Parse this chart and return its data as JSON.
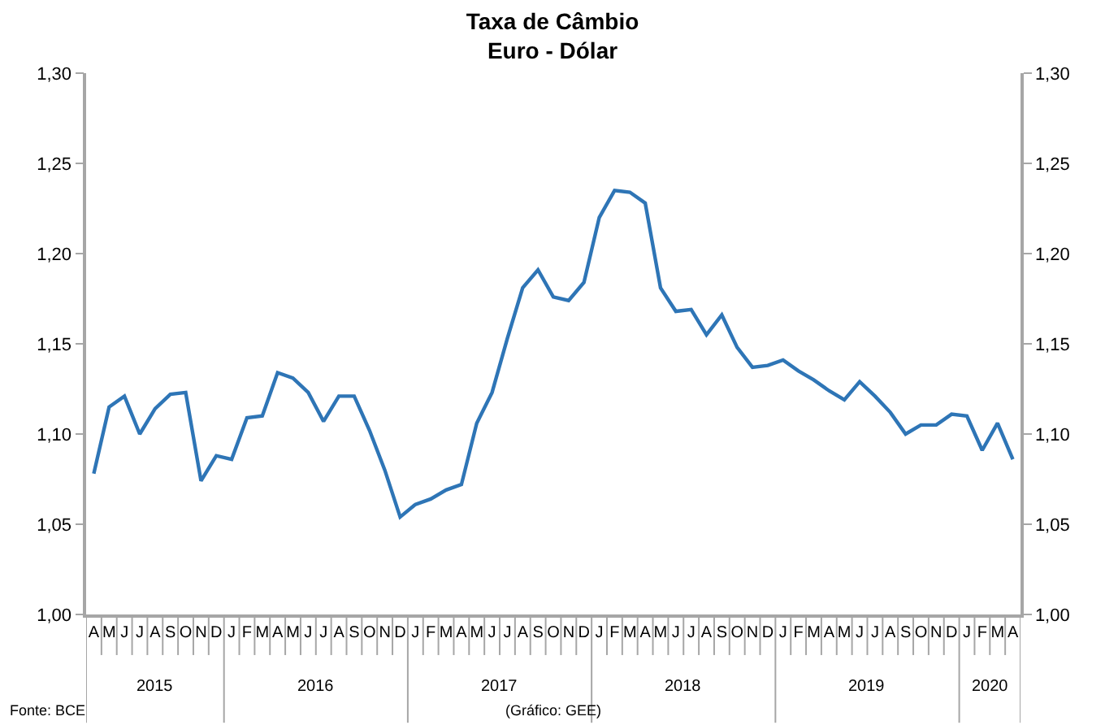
{
  "chart_data": {
    "type": "line",
    "title": "Taxa de Câmbio",
    "subtitle": "Euro - Dólar",
    "categories": [
      "A",
      "M",
      "J",
      "J",
      "A",
      "S",
      "O",
      "N",
      "D",
      "J",
      "F",
      "M",
      "A",
      "M",
      "J",
      "J",
      "A",
      "S",
      "O",
      "N",
      "D",
      "J",
      "F",
      "M",
      "A",
      "M",
      "J",
      "J",
      "A",
      "S",
      "O",
      "N",
      "D",
      "J",
      "F",
      "M",
      "A",
      "M",
      "J",
      "J",
      "A",
      "S",
      "O",
      "N",
      "D",
      "J",
      "F",
      "M",
      "A",
      "M",
      "J",
      "J",
      "A",
      "S",
      "O",
      "N",
      "D",
      "J",
      "F",
      "M",
      "A"
    ],
    "series": [
      {
        "color": "#2e75b6",
        "values": [
          1.078,
          1.115,
          1.121,
          1.1,
          1.114,
          1.122,
          1.123,
          1.074,
          1.088,
          1.086,
          1.109,
          1.11,
          1.134,
          1.131,
          1.123,
          1.107,
          1.121,
          1.121,
          1.102,
          1.08,
          1.054,
          1.061,
          1.064,
          1.069,
          1.072,
          1.106,
          1.123,
          1.153,
          1.181,
          1.191,
          1.176,
          1.174,
          1.184,
          1.22,
          1.235,
          1.234,
          1.228,
          1.181,
          1.168,
          1.169,
          1.155,
          1.166,
          1.148,
          1.137,
          1.138,
          1.141,
          1.135,
          1.13,
          1.124,
          1.119,
          1.129,
          1.121,
          1.112,
          1.1,
          1.105,
          1.105,
          1.111,
          1.11,
          1.091,
          1.106,
          1.086
        ]
      }
    ],
    "ylim": [
      1.0,
      1.3
    ],
    "yticks": [
      {
        "value": 1.0,
        "label": "1,00"
      },
      {
        "value": 1.05,
        "label": "1,05"
      },
      {
        "value": 1.1,
        "label": "1,10"
      },
      {
        "value": 1.15,
        "label": "1,15"
      },
      {
        "value": 1.2,
        "label": "1,20"
      },
      {
        "value": 1.25,
        "label": "1,25"
      },
      {
        "value": 1.3,
        "label": "1,30"
      }
    ],
    "y2lim": [
      1.0,
      1.3
    ],
    "y2ticks": [
      {
        "value": 1.0,
        "label": "1,00"
      },
      {
        "value": 1.05,
        "label": "1,05"
      },
      {
        "value": 1.1,
        "label": "1,10"
      },
      {
        "value": 1.15,
        "label": "1,15"
      },
      {
        "value": 1.2,
        "label": "1,20"
      },
      {
        "value": 1.25,
        "label": "1,25"
      },
      {
        "value": 1.3,
        "label": "1,30"
      }
    ],
    "annotations": [
      "2015",
      "2016",
      "2017",
      "2018",
      "2019",
      "2020",
      "Fonte: BCE",
      "(Gráfico: GEE)"
    ],
    "marker": "none",
    "line_style": "solid"
  }
}
